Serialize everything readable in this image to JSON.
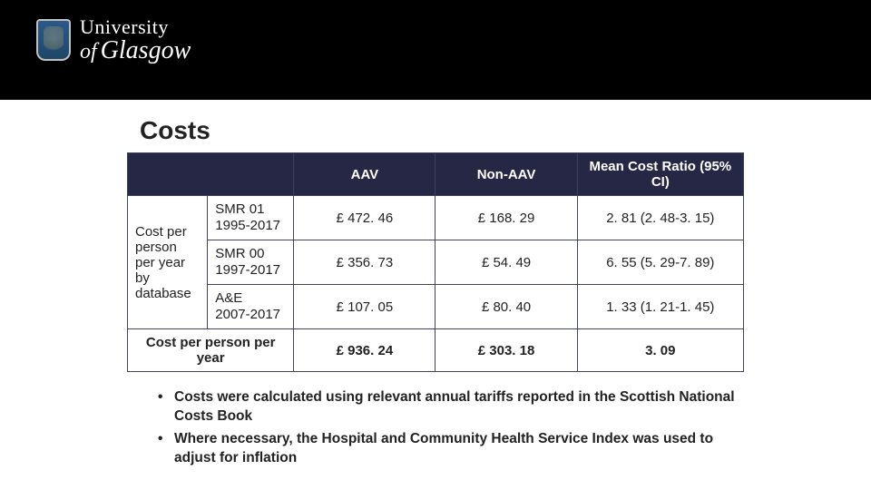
{
  "header": {
    "uni_line1": "University",
    "uni_line2_of": "of",
    "uni_line2_name": "Glasgow"
  },
  "title": "Costs",
  "table": {
    "headers": {
      "blank": "",
      "aav": "AAV",
      "non_aav": "Non-AAV",
      "ratio": "Mean Cost Ratio (95% CI)"
    },
    "group_label": "Cost per person per year by database",
    "rows": [
      {
        "label_l1": "SMR 01",
        "label_l2": "1995-2017",
        "aav": "£ 472. 46",
        "non_aav": "£ 168. 29",
        "ratio": "2. 81 (2. 48-3. 15)"
      },
      {
        "label_l1": "SMR 00",
        "label_l2": "1997-2017",
        "aav": "£ 356. 73",
        "non_aav": "£ 54. 49",
        "ratio": "6. 55 (5. 29-7. 89)"
      },
      {
        "label_l1": "A&E",
        "label_l2": "2007-2017",
        "aav": "£ 107. 05",
        "non_aav": "£ 80. 40",
        "ratio": "1. 33 (1. 21-1. 45)"
      }
    ],
    "total": {
      "label": "Cost per person per year",
      "aav": "£ 936. 24",
      "non_aav": "£ 303. 18",
      "ratio": "3. 09"
    },
    "colors": {
      "header_bg": "#262645",
      "header_fg": "#ffffff",
      "border": "#404060",
      "cell_bg": "#ffffff",
      "cell_fg": "#222222"
    }
  },
  "bullets": [
    "Costs were calculated using relevant annual tariffs reported in the Scottish National Costs Book",
    "Where necessary, the Hospital and Community Health Service Index was used to adjust for inflation"
  ]
}
